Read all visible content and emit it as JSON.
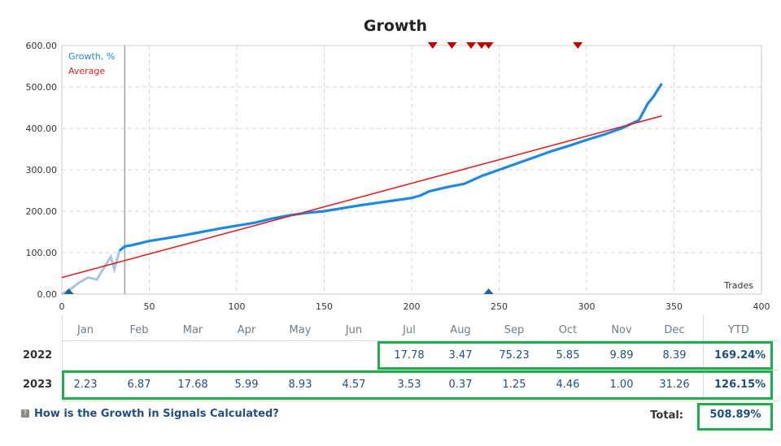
{
  "chart_data": {
    "type": "line",
    "title": "Growth",
    "xlabel": "Trades",
    "xlim": [
      0,
      400
    ],
    "ylim": [
      0,
      600
    ],
    "x_ticks": [
      0,
      50,
      100,
      150,
      200,
      250,
      300,
      350,
      400
    ],
    "y_ticks": [
      "0.00",
      "100.00",
      "200.00",
      "300.00",
      "400.00",
      "500.00",
      "600.00"
    ],
    "legend": {
      "placement": "top-left",
      "entries": [
        {
          "name": "Growth, %",
          "color": "#1e88e5"
        },
        {
          "name": "Average",
          "color": "#e02020"
        }
      ]
    },
    "grid": true,
    "series": [
      {
        "name": "Growth, %",
        "color": "#1e88e5",
        "points": [
          [
            0,
            0
          ],
          [
            5,
            12
          ],
          [
            10,
            28
          ],
          [
            15,
            40
          ],
          [
            20,
            35
          ],
          [
            25,
            70
          ],
          [
            28,
            90
          ],
          [
            30,
            60
          ],
          [
            33,
            105
          ],
          [
            36,
            115
          ],
          [
            40,
            118
          ],
          [
            50,
            128
          ],
          [
            60,
            135
          ],
          [
            70,
            142
          ],
          [
            80,
            150
          ],
          [
            90,
            158
          ],
          [
            100,
            165
          ],
          [
            110,
            172
          ],
          [
            120,
            182
          ],
          [
            130,
            190
          ],
          [
            140,
            196
          ],
          [
            150,
            200
          ],
          [
            160,
            207
          ],
          [
            170,
            214
          ],
          [
            180,
            220
          ],
          [
            190,
            226
          ],
          [
            200,
            232
          ],
          [
            205,
            238
          ],
          [
            210,
            248
          ],
          [
            220,
            258
          ],
          [
            230,
            266
          ],
          [
            240,
            285
          ],
          [
            250,
            300
          ],
          [
            260,
            315
          ],
          [
            270,
            330
          ],
          [
            280,
            345
          ],
          [
            290,
            358
          ],
          [
            300,
            372
          ],
          [
            310,
            385
          ],
          [
            320,
            400
          ],
          [
            330,
            420
          ],
          [
            335,
            460
          ],
          [
            338,
            475
          ],
          [
            343,
            508
          ]
        ]
      },
      {
        "name": "Average",
        "color": "#e02020",
        "points": [
          [
            0,
            40
          ],
          [
            343,
            430
          ]
        ]
      }
    ],
    "markers": {
      "top_red_x": [
        212,
        223,
        234,
        240,
        244,
        295
      ],
      "bottom_blue_x": [
        4,
        244
      ]
    }
  },
  "table": {
    "months": [
      "Jan",
      "Feb",
      "Mar",
      "Apr",
      "May",
      "Jun",
      "Jul",
      "Aug",
      "Sep",
      "Oct",
      "Nov",
      "Dec"
    ],
    "ytd_label": "YTD",
    "rows": [
      {
        "year": "2022",
        "values": [
          "",
          "",
          "",
          "",
          "",
          "",
          "17.78",
          "3.47",
          "75.23",
          "5.85",
          "9.89",
          "8.39"
        ],
        "ytd": "169.24%"
      },
      {
        "year": "2023",
        "values": [
          "2.23",
          "6.87",
          "17.68",
          "5.99",
          "8.93",
          "4.57",
          "3.53",
          "0.37",
          "1.25",
          "4.46",
          "1.00",
          "31.26"
        ],
        "ytd": "126.15%"
      }
    ],
    "link_text": "How is the Growth in Signals Calculated?",
    "total_label": "Total:",
    "total_value": "508.89%"
  }
}
